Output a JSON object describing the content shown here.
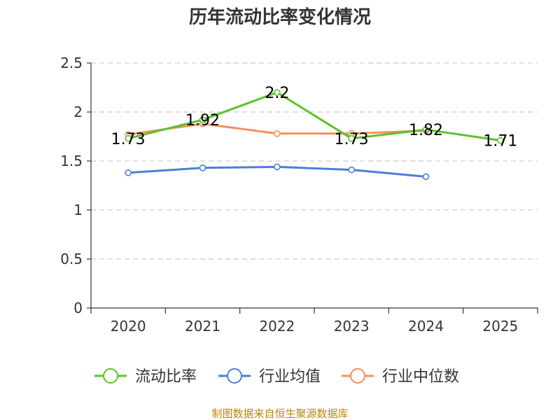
{
  "chart_data": {
    "type": "line",
    "title": "历年流动比率变化情况",
    "categories": [
      "2020",
      "2021",
      "2022",
      "2023",
      "2024",
      "2025"
    ],
    "ylim": [
      0,
      2.5
    ],
    "yticks": [
      "0",
      "0.5",
      "1",
      "1.5",
      "2",
      "2.5"
    ],
    "grid": true,
    "legend_position": "bottom",
    "series": [
      {
        "name": "流动比率",
        "color": "#5cc22e",
        "values": [
          1.73,
          1.92,
          2.2,
          1.73,
          1.82,
          1.71
        ],
        "labels": [
          "1.73",
          "1.92",
          "2.2",
          "1.73",
          "1.82",
          "1.71"
        ]
      },
      {
        "name": "行业均值",
        "color": "#4a7fd8",
        "values": [
          1.38,
          1.43,
          1.44,
          1.41,
          1.34,
          null
        ]
      },
      {
        "name": "行业中位数",
        "color": "#f5905a",
        "values": [
          1.77,
          1.88,
          1.78,
          1.78,
          1.81,
          null
        ]
      }
    ]
  },
  "source_note": "制图数据来自恒生聚源数据库"
}
